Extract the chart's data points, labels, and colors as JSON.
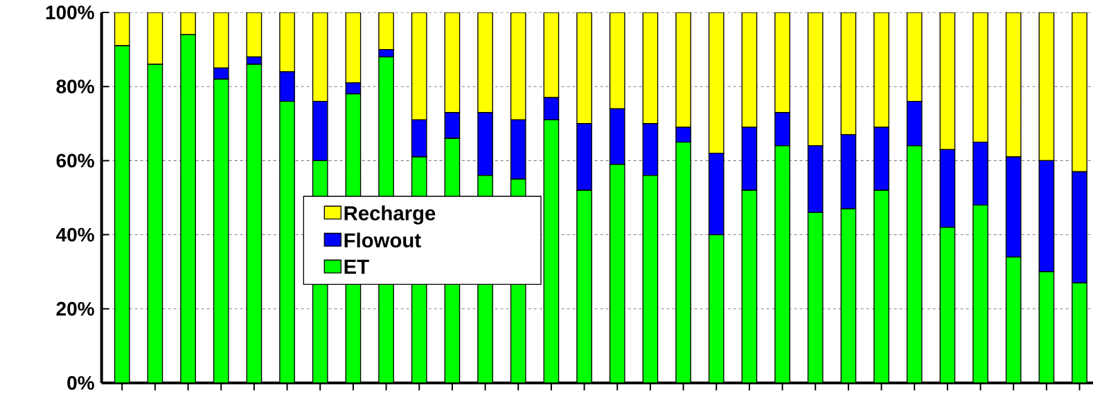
{
  "chart_data": {
    "type": "bar",
    "stacked": true,
    "categories": [
      null,
      null,
      null,
      null,
      null,
      null,
      null,
      null,
      null,
      null,
      null,
      null,
      null,
      null,
      null,
      null,
      null,
      null,
      null,
      null,
      null,
      null,
      null,
      null,
      null,
      null,
      null,
      null,
      null,
      null
    ],
    "series": [
      {
        "name": "ET",
        "color": "#00ff00",
        "values": [
          91,
          86,
          94,
          82,
          86,
          76,
          60,
          78,
          88,
          61,
          66,
          56,
          55,
          71,
          52,
          59,
          56,
          65,
          40,
          52,
          64,
          46,
          47,
          52,
          64,
          42,
          48,
          34,
          30,
          27
        ]
      },
      {
        "name": "Flowout",
        "color": "#0000ff",
        "values": [
          0,
          0,
          0,
          3,
          2,
          8,
          16,
          3,
          2,
          10,
          7,
          17,
          16,
          6,
          18,
          15,
          14,
          4,
          22,
          17,
          9,
          18,
          20,
          17,
          12,
          21,
          17,
          27,
          30,
          30
        ]
      },
      {
        "name": "Recharge",
        "color": "#ffff00",
        "values": [
          9,
          14,
          6,
          15,
          12,
          16,
          24,
          19,
          10,
          29,
          27,
          27,
          29,
          23,
          30,
          26,
          30,
          31,
          38,
          31,
          27,
          36,
          33,
          31,
          24,
          37,
          35,
          39,
          40,
          43
        ]
      }
    ],
    "ylim": [
      0,
      100
    ],
    "yticks": [
      {
        "value": 0,
        "label": "0%"
      },
      {
        "value": 20,
        "label": "20%"
      },
      {
        "value": 40,
        "label": "40%"
      },
      {
        "value": 60,
        "label": "60%"
      },
      {
        "value": 80,
        "label": "80%"
      },
      {
        "value": 100,
        "label": "100%"
      }
    ],
    "grid": "y",
    "legend": "center"
  }
}
